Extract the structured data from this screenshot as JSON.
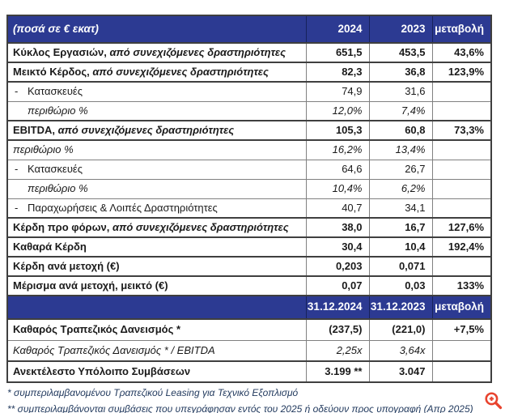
{
  "table": {
    "header_top": {
      "label": "(ποσά σε € εκατ)",
      "col_2024": "2024",
      "col_2023": "2023",
      "col_change": "μεταβολή"
    },
    "header_bottom": {
      "label": "",
      "col_2024": "31.12.2024",
      "col_2023": "31.12.2023",
      "col_change": "μεταβολή"
    },
    "rows_top": [
      {
        "label": "Κύκλος Εργασιών,",
        "label_italic": " από συνεχιζόμενες δραστηριότητες",
        "style": "bold",
        "border": "thick",
        "v2024": "651,5",
        "v2023": "453,5",
        "change": "43,6%"
      },
      {
        "label": "Μεικτό Κέρδος,",
        "label_italic": " από συνεχιζόμενες δραστηριότητες",
        "style": "bold",
        "border": "thick",
        "v2024": "82,3",
        "v2023": "36,8",
        "change": "123,9%"
      },
      {
        "label": "Κατασκευές",
        "dash": true,
        "style": "plain",
        "border": "thick",
        "v2024": "74,9",
        "v2023": "31,6",
        "change": ""
      },
      {
        "label": "περιθώριο %",
        "style": "italic",
        "indent": true,
        "border": "thin",
        "v2024": "12,0%",
        "v2023": "7,4%",
        "change": ""
      },
      {
        "label": "EBITDA,",
        "label_italic": " από συνεχιζόμενες δραστηριότητες",
        "style": "bold",
        "border": "thick",
        "v2024": "105,3",
        "v2023": "60,8",
        "change": "73,3%"
      },
      {
        "label": "περιθώριο %",
        "style": "italic",
        "border": "thick",
        "v2024": "16,2%",
        "v2023": "13,4%",
        "change": ""
      },
      {
        "label": "Κατασκευές",
        "dash": true,
        "style": "plain",
        "border": "thin",
        "v2024": "64,6",
        "v2023": "26,7",
        "change": ""
      },
      {
        "label": "περιθώριο %",
        "style": "italic",
        "indent": true,
        "border": "thin",
        "v2024": "10,4%",
        "v2023": "6,2%",
        "change": ""
      },
      {
        "label": "Παραχωρήσεις & Λοιπές Δραστηριότητες",
        "dash": true,
        "style": "plain",
        "border": "thin",
        "v2024": "40,7",
        "v2023": "34,1",
        "change": ""
      },
      {
        "label": "Κέρδη προ φόρων,",
        "label_italic": " από συνεχιζόμενες δραστηριότητες",
        "style": "bold",
        "border": "thick",
        "v2024": "38,0",
        "v2023": "16,7",
        "change": "127,6%"
      },
      {
        "label": "Καθαρά Κέρδη",
        "style": "bold",
        "border": "thick",
        "v2024": "30,4",
        "v2023": "10,4",
        "change": "192,4%"
      },
      {
        "label": "Κέρδη ανά μετοχή (€)",
        "style": "bold",
        "border": "thick",
        "v2024": "0,203",
        "v2023": "0,071",
        "change": ""
      },
      {
        "label": "Μέρισμα ανά μετοχή, μεικτό (€)",
        "style": "bold",
        "border": "thick",
        "v2024": "0,07",
        "v2023": "0,03",
        "change": "133%"
      }
    ],
    "rows_bottom": [
      {
        "label": "Καθαρός Τραπεζικός Δανεισμός *",
        "style": "bold",
        "border": "thick",
        "v2024": "(237,5)",
        "v2023": "(221,0)",
        "change": "+7,5%"
      },
      {
        "label": "Καθαρός Τραπεζικός Δανεισμός * / EBITDA",
        "style": "italic",
        "border": "thin",
        "v2024": "2,25x",
        "v2023": "3,64x",
        "change": ""
      },
      {
        "label": "Ανεκτέλεστο Υπόλοιπο Συμβάσεων",
        "style": "bold",
        "border": "thick",
        "v2024": "3.199 **",
        "v2023": "3.047",
        "change": ""
      }
    ]
  },
  "glyphs": {
    "dash": "-"
  },
  "footnotes": {
    "note1": "* συμπεριλαμβανομένου Τραπεζικού Leasing για Τεχνικό Εξοπλισμό",
    "note2": "** συμπεριλαμβάνονται συμβάσεις που υπεγράφησαν εντός του 2025 ή οδεύουν προς υπογραφή (Απρ 2025)"
  },
  "colors": {
    "header_bg": "#2c3a92",
    "header_text": "#ffffff",
    "body_text": "#1a1a1a",
    "border_strong": "#3f3f3f",
    "border_light": "#808080",
    "footnote_text": "#223a5e",
    "zoom_icon": "#e8432e"
  }
}
